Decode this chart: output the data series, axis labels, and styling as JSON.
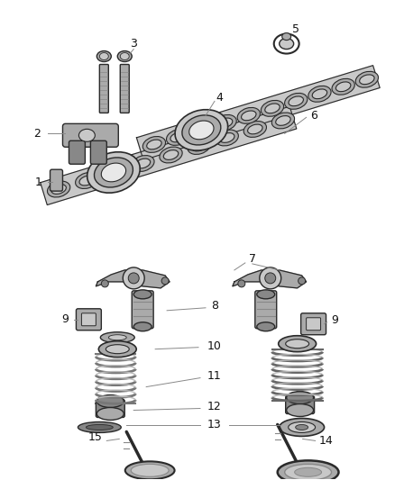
{
  "bg_color": "#ffffff",
  "lc": "#2a2a2a",
  "gray1": "#c8c8c8",
  "gray2": "#aaaaaa",
  "gray3": "#888888",
  "gray4": "#666666",
  "fig_w": 4.38,
  "fig_h": 5.33,
  "dpi": 100
}
